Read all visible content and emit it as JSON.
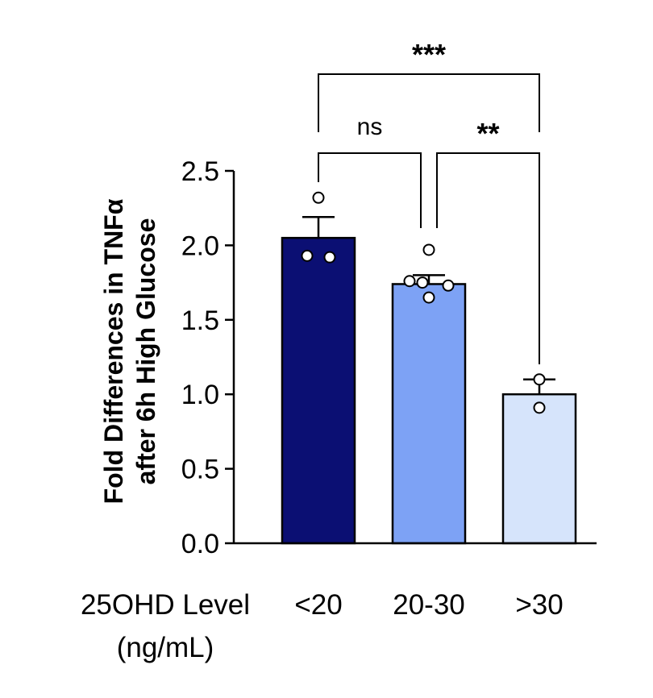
{
  "chart_data": {
    "type": "bar",
    "categories": [
      "<20",
      "20-30",
      ">30"
    ],
    "values": [
      2.05,
      1.74,
      1.0
    ],
    "error_bars_upper": [
      2.19,
      1.8,
      1.1
    ],
    "points": [
      [
        2.32,
        1.93,
        1.92
      ],
      [
        1.97,
        1.76,
        1.75,
        1.73,
        1.65
      ],
      [
        1.1,
        0.91
      ]
    ],
    "colors": [
      "#0b0f73",
      "#7da2f5",
      "#d6e4fb"
    ],
    "ylabel_line1": "Fold Differences in TNFα",
    "ylabel_line2": "after 6h High Glucose",
    "xlabel_line1": "25OHD Level",
    "xlabel_line2": "(ng/mL)",
    "ylim": [
      0,
      2.5
    ],
    "yticks": [
      "0.0",
      "0.5",
      "1.0",
      "1.5",
      "2.0",
      "2.5"
    ],
    "significance": [
      {
        "from": 0,
        "to": 1,
        "label": "ns"
      },
      {
        "from": 1,
        "to": 2,
        "label": "**"
      },
      {
        "from": 0,
        "to": 2,
        "label": "***"
      }
    ]
  }
}
